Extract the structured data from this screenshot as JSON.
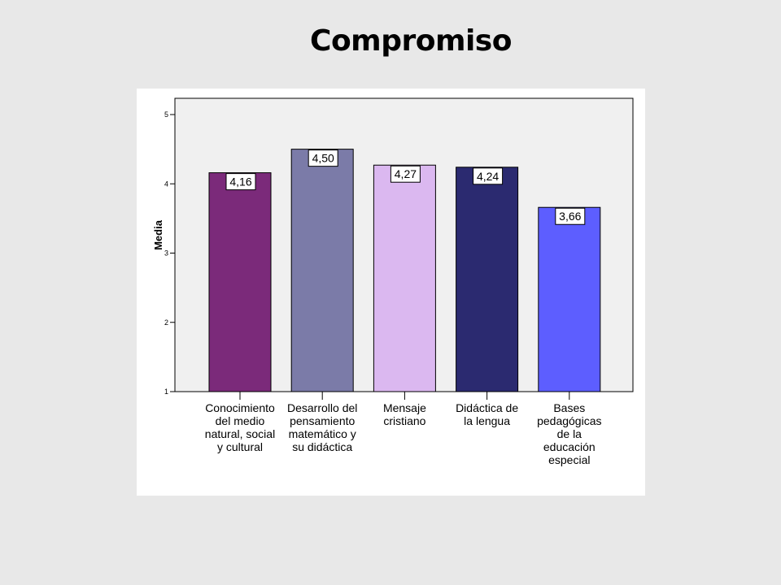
{
  "chart_data": {
    "type": "bar",
    "title": "Compromiso",
    "ylabel": "Media",
    "ylim": [
      1,
      5
    ],
    "yticks": [
      "1",
      "2",
      "3",
      "4",
      "5"
    ],
    "categories": [
      [
        "Conocimiento",
        "del medio",
        "natural, social",
        "y cultural"
      ],
      [
        "Desarrollo del",
        "pensamiento",
        "matemático y",
        "su didáctica"
      ],
      [
        "Mensaje",
        "cristiano"
      ],
      [
        "Didáctica de",
        "la lengua"
      ],
      [
        "Bases",
        "pedagógicas",
        "de la",
        "educación",
        "especial"
      ]
    ],
    "values": [
      4.16,
      4.5,
      4.27,
      4.24,
      3.66
    ],
    "value_labels": [
      "4,16",
      "4,50",
      "4,27",
      "4,24",
      "3,66"
    ],
    "colors": [
      "#7b2a7a",
      "#7b7ba8",
      "#dbb8f0",
      "#2b2a70",
      "#5d5eff"
    ],
    "plot_background": "#f0f0f0",
    "grid": false
  }
}
